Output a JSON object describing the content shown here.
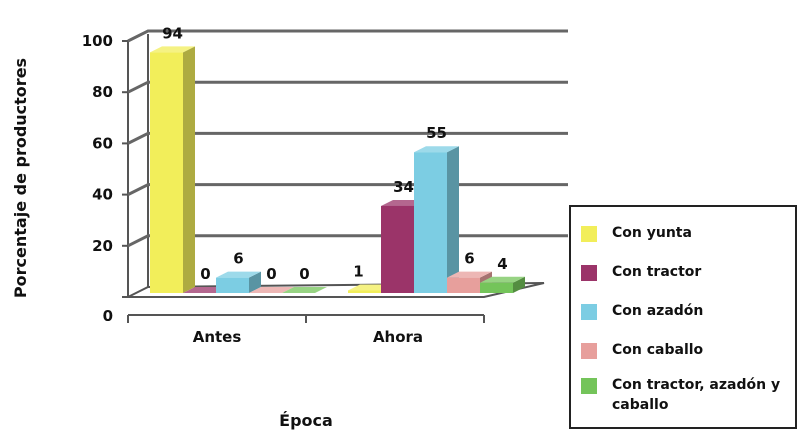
{
  "chart_data": {
    "type": "bar",
    "categories": [
      "Antes",
      "Ahora"
    ],
    "series": [
      {
        "name": "Con yunta",
        "values": [
          94,
          1
        ],
        "color": "#f2ee5a"
      },
      {
        "name": "Con tractor",
        "values": [
          0,
          34
        ],
        "color": "#9b3469"
      },
      {
        "name": "Con azadón",
        "values": [
          6,
          55
        ],
        "color": "#7ccde3"
      },
      {
        "name": "Con caballo",
        "values": [
          0,
          6
        ],
        "color": "#e79f9c"
      },
      {
        "name": "Con tractor, azadón y caballo",
        "values": [
          0,
          4
        ],
        "color": "#74c45a"
      }
    ],
    "data_labels": [
      [
        "94",
        "0",
        "6",
        "0",
        "0"
      ],
      [
        "1",
        "34",
        "55",
        "6",
        "4"
      ]
    ],
    "xlabel": "Época",
    "ylabel": "Porcentaje de productores",
    "ylim": [
      0,
      100
    ],
    "yticks": [
      "0",
      "20",
      "40",
      "60",
      "80",
      "100"
    ],
    "grid": true,
    "style": "3d-clustered-column",
    "legend_position": "right"
  }
}
